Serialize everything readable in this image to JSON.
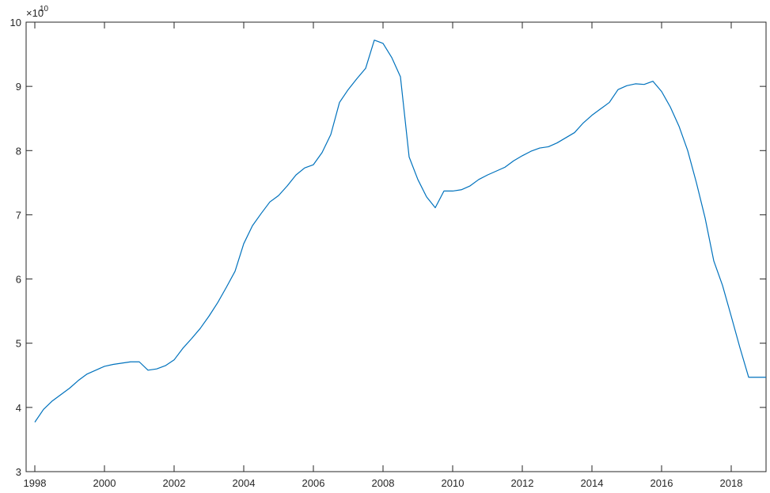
{
  "chart_data": {
    "type": "line",
    "title": "",
    "xlabel": "",
    "ylabel": "",
    "xlim": [
      1997.75,
      2019.0
    ],
    "ylim": [
      3,
      10
    ],
    "y_exponent_label": {
      "base": "×10",
      "power": "10"
    },
    "x_ticks": [
      "1998",
      "2000",
      "2002",
      "2004",
      "2006",
      "2008",
      "2010",
      "2012",
      "2014",
      "2016",
      "2018"
    ],
    "y_ticks": [
      "3",
      "4",
      "5",
      "6",
      "7",
      "8",
      "9",
      "10"
    ],
    "grid": false,
    "line_color": "#0072BD",
    "series": [
      {
        "x": [
          1998.0,
          1998.25,
          1998.5,
          1998.75,
          1999.0,
          1999.25,
          1999.5,
          1999.75,
          2000.0,
          2000.25,
          2000.5,
          2000.75,
          2001.0,
          2001.25,
          2001.5,
          2001.75,
          2002.0,
          2002.25,
          2002.5,
          2002.75,
          2003.0,
          2003.25,
          2003.5,
          2003.75,
          2004.0,
          2004.25,
          2004.5,
          2004.75,
          2005.0,
          2005.25,
          2005.5,
          2005.75,
          2006.0,
          2006.25,
          2006.5,
          2006.75,
          2007.0,
          2007.25,
          2007.5,
          2007.75,
          2008.0,
          2008.25,
          2008.5,
          2008.75,
          2009.0,
          2009.25,
          2009.5,
          2009.75,
          2010.0,
          2010.25,
          2010.5,
          2010.75,
          2011.0,
          2011.25,
          2011.5,
          2011.75,
          2012.0,
          2012.25,
          2012.5,
          2012.75,
          2013.0,
          2013.25,
          2013.5,
          2013.75,
          2014.0,
          2014.25,
          2014.5,
          2014.75,
          2015.0,
          2015.25,
          2015.5,
          2015.75,
          2016.0,
          2016.25,
          2016.5,
          2016.75,
          2017.0,
          2017.25,
          2017.5,
          2017.75,
          2018.0,
          2018.25,
          2018.5,
          2018.75,
          2019.0
        ],
        "values": [
          3.77,
          3.97,
          4.1,
          4.2,
          4.3,
          4.42,
          4.52,
          4.58,
          4.64,
          4.67,
          4.69,
          4.71,
          4.71,
          4.58,
          4.6,
          4.65,
          4.74,
          4.92,
          5.07,
          5.23,
          5.42,
          5.63,
          5.87,
          6.12,
          6.55,
          6.83,
          7.02,
          7.2,
          7.3,
          7.45,
          7.62,
          7.73,
          7.78,
          7.97,
          8.25,
          8.75,
          8.95,
          9.12,
          9.28,
          9.72,
          9.67,
          9.45,
          9.15,
          7.9,
          7.55,
          7.28,
          7.11,
          7.37,
          7.37,
          7.39,
          7.45,
          7.55,
          7.62,
          7.68,
          7.74,
          7.84,
          7.92,
          7.99,
          8.04,
          8.06,
          8.12,
          8.2,
          8.28,
          8.43,
          8.55,
          8.65,
          8.75,
          8.95,
          9.01,
          9.04,
          9.03,
          9.08,
          8.92,
          8.68,
          8.38,
          8.0,
          7.5,
          6.95,
          6.28,
          5.9,
          5.42,
          4.93,
          4.47,
          4.47,
          4.47
        ]
      }
    ]
  }
}
